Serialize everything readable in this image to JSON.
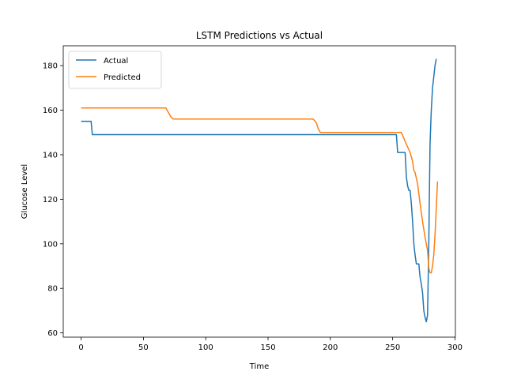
{
  "chart_data": {
    "type": "line",
    "title": "LSTM Predictions vs Actual",
    "xlabel": "Time",
    "ylabel": "Glucose Level",
    "xlim": [
      -14.35,
      300.35
    ],
    "ylim": [
      58.1,
      188.9
    ],
    "xticks": [
      0,
      50,
      100,
      150,
      200,
      250,
      300
    ],
    "yticks": [
      60,
      80,
      100,
      120,
      140,
      160,
      180
    ],
    "grid": false,
    "legend_position": "top-left",
    "series": [
      {
        "name": "Actual",
        "color": "#1f77b4",
        "points": [
          [
            0,
            155
          ],
          [
            8,
            155
          ],
          [
            9,
            149
          ],
          [
            253,
            149
          ],
          [
            254,
            141
          ],
          [
            260,
            141
          ],
          [
            261,
            130
          ],
          [
            262,
            126
          ],
          [
            263,
            124
          ],
          [
            264,
            124
          ],
          [
            265,
            118
          ],
          [
            266,
            110
          ],
          [
            267,
            100
          ],
          [
            268,
            95
          ],
          [
            269,
            91
          ],
          [
            270,
            91
          ],
          [
            271,
            91
          ],
          [
            272,
            85
          ],
          [
            273,
            82
          ],
          [
            274,
            78
          ],
          [
            275,
            70
          ],
          [
            276,
            67
          ],
          [
            277,
            65
          ],
          [
            278,
            68
          ],
          [
            279,
            100
          ],
          [
            280,
            145
          ],
          [
            281,
            160
          ],
          [
            282,
            170
          ],
          [
            283,
            175
          ],
          [
            284,
            180
          ],
          [
            285,
            183
          ]
        ]
      },
      {
        "name": "Predicted",
        "color": "#ff7f0e",
        "points": [
          [
            0,
            161
          ],
          [
            68,
            161
          ],
          [
            70,
            159
          ],
          [
            72,
            157
          ],
          [
            74,
            156
          ],
          [
            186,
            156
          ],
          [
            188,
            155
          ],
          [
            189,
            154
          ],
          [
            190,
            152
          ],
          [
            191,
            151
          ],
          [
            192,
            150
          ],
          [
            257,
            150
          ],
          [
            260,
            146
          ],
          [
            264,
            141
          ],
          [
            266,
            137
          ],
          [
            267,
            133
          ],
          [
            268,
            132
          ],
          [
            270,
            127
          ],
          [
            272,
            118
          ],
          [
            274,
            110
          ],
          [
            276,
            103
          ],
          [
            278,
            97
          ],
          [
            279,
            89
          ],
          [
            280,
            87
          ],
          [
            281,
            87
          ],
          [
            282,
            90
          ],
          [
            283,
            95
          ],
          [
            284,
            104
          ],
          [
            285,
            116
          ],
          [
            286,
            128
          ]
        ]
      }
    ]
  }
}
